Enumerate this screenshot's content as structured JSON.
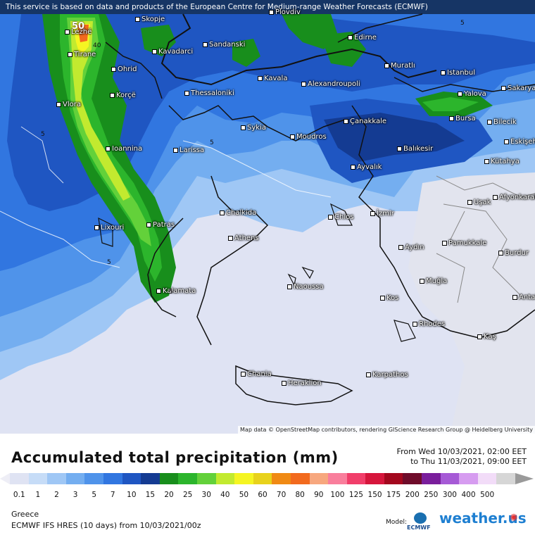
{
  "header": {
    "disclaimer": "This service is based on data and products of the European Centre for Medium-range Weather Forecasts (ECMWF)"
  },
  "map": {
    "attribution": "Map data © OpenStreetMap contributors, rendering GIScience Research Group @ Heidelberg University",
    "cities": [
      "Plovdiv",
      "Lezhë",
      "Skopje",
      "Kavadarci",
      "Sandanski",
      "Edirne",
      "Tirane",
      "Ohrid",
      "Muratlı",
      "Istanbul",
      "Kavala",
      "Alexandroupoli",
      "Korçë",
      "Thessaloniki",
      "Yalova",
      "Sakarya",
      "Vlora",
      "Sykia",
      "Çanakkale",
      "Bursa",
      "Bilecik",
      "Moudros",
      "Balıkesir",
      "Eskişehir",
      "Ioannina",
      "Larissa",
      "Kütahya",
      "Ayvalık",
      "Afyonkarahisar",
      "Uşak",
      "Chalkida",
      "İzmir",
      "Lixouri",
      "Chios",
      "Patras",
      "Athens",
      "Aydın",
      "Pamukkale",
      "Burdur",
      "Naoussa",
      "Muğla",
      "Kalamata",
      "Kos",
      "Antalya",
      "Rhodes",
      "Kaş",
      "Chania",
      "Heraklion",
      "Karpathos"
    ],
    "contour_labels": [
      "50",
      "40",
      "5",
      "5",
      "5",
      "5",
      "5"
    ]
  },
  "legend": {
    "title": "Accumulated total precipitation (mm)",
    "period_from": "From Wed 10/03/2021, 02:00 EET",
    "period_to": "to Thu 11/03/2021, 09:00 EET",
    "ticks": [
      "0.1",
      "1",
      "2",
      "3",
      "5",
      "7",
      "10",
      "15",
      "20",
      "25",
      "30",
      "40",
      "50",
      "60",
      "70",
      "80",
      "90",
      "100",
      "125",
      "150",
      "175",
      "200",
      "250",
      "300",
      "400",
      "500"
    ],
    "colors": [
      "#dfe3f3",
      "#c6dcf7",
      "#9fc7f5",
      "#74aef0",
      "#4f93ea",
      "#3176e0",
      "#1f56c2",
      "#143b92",
      "#188e1c",
      "#2cb52c",
      "#63d13a",
      "#c2ea2f",
      "#f5f522",
      "#e8d21c",
      "#f08a14",
      "#f26a1e",
      "#f7a77e",
      "#f97e9c",
      "#f13e6a",
      "#d6163c",
      "#a3081e",
      "#6f0c2a",
      "#7a1e9c",
      "#a65ad6",
      "#d69cf0",
      "#f2dcf8",
      "#d6d6d6"
    ],
    "region": "Greece",
    "model": "ECMWF IFS HRES (10 days)  from  10/03/2021/00z",
    "model_label": "Model:",
    "model_logo": "ECMWF",
    "brand": "weather.us"
  }
}
